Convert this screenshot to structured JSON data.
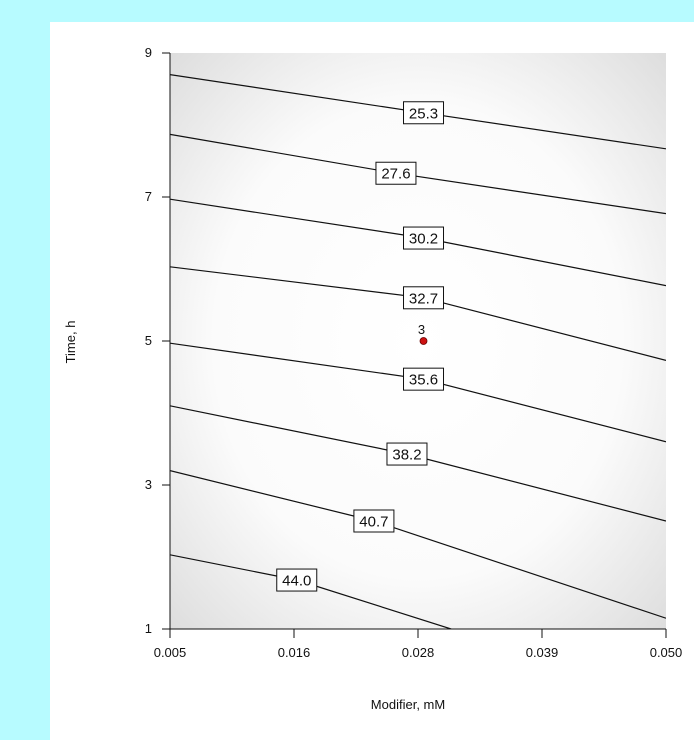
{
  "colors": {
    "background": "#b7fbff",
    "panel": "#ffffff",
    "plot_fill": "#f3f3f3",
    "design_point": "#cc1111"
  },
  "chart_data": {
    "type": "contour",
    "xlabel": "Modifier, mM",
    "ylabel": "Time, h",
    "xlim": [
      0.005,
      0.05
    ],
    "ylim": [
      1,
      9
    ],
    "x_ticks": [
      "0.005",
      "0.016",
      "0.028",
      "0.039",
      "0.050"
    ],
    "y_ticks": [
      "1",
      "3",
      "5",
      "7",
      "9"
    ],
    "grid": false,
    "contours": [
      {
        "level": "25.3",
        "points": [
          [
            0.005,
            8.7
          ],
          [
            0.028,
            8.17
          ],
          [
            0.05,
            7.67
          ]
        ],
        "label_x": 0.028
      },
      {
        "level": "27.6",
        "points": [
          [
            0.005,
            7.87
          ],
          [
            0.0255,
            7.33
          ],
          [
            0.05,
            6.77
          ]
        ],
        "label_x": 0.0255
      },
      {
        "level": "30.2",
        "points": [
          [
            0.005,
            6.97
          ],
          [
            0.028,
            6.43
          ],
          [
            0.05,
            5.77
          ]
        ],
        "label_x": 0.028
      },
      {
        "level": "32.7",
        "points": [
          [
            0.005,
            6.03
          ],
          [
            0.028,
            5.6
          ],
          [
            0.05,
            4.73
          ]
        ],
        "label_x": 0.028
      },
      {
        "level": "35.6",
        "points": [
          [
            0.005,
            4.97
          ],
          [
            0.028,
            4.47
          ],
          [
            0.05,
            3.6
          ]
        ],
        "label_x": 0.028
      },
      {
        "level": "38.2",
        "points": [
          [
            0.005,
            4.1
          ],
          [
            0.0265,
            3.43
          ],
          [
            0.05,
            2.5
          ]
        ],
        "label_x": 0.0265
      },
      {
        "level": "40.7",
        "points": [
          [
            0.005,
            3.2
          ],
          [
            0.0235,
            2.5
          ],
          [
            0.05,
            1.15
          ]
        ],
        "label_x": 0.0235
      },
      {
        "level": "44.0",
        "points": [
          [
            0.005,
            2.03
          ],
          [
            0.0165,
            1.68
          ],
          [
            0.0305,
            1.0
          ]
        ],
        "label_x": 0.0165
      }
    ],
    "design_points": [
      {
        "x": 0.028,
        "y": 5.0,
        "label": "3"
      }
    ]
  }
}
